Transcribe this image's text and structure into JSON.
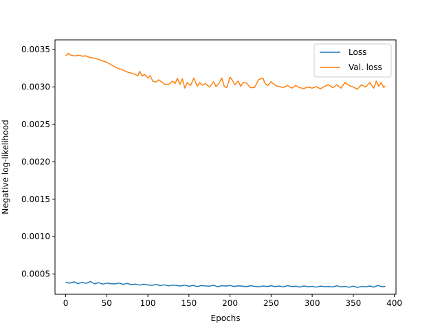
{
  "chart_data": {
    "type": "line",
    "title": "",
    "xlabel": "Epochs",
    "ylabel": "Negative log-likelihood",
    "xlim": [
      -13,
      402
    ],
    "ylim": [
      0.00023,
      0.00363
    ],
    "xticks": [
      0,
      50,
      100,
      150,
      200,
      250,
      300,
      350,
      400
    ],
    "xtick_labels": [
      "0",
      "50",
      "100",
      "150",
      "200",
      "250",
      "300",
      "350",
      "400"
    ],
    "yticks": [
      0.0005,
      0.001,
      0.0015,
      0.002,
      0.0025,
      0.003,
      0.0035
    ],
    "ytick_labels": [
      "0.0005",
      "0.0010",
      "0.0015",
      "0.0020",
      "0.0025",
      "0.0030",
      "0.0035"
    ],
    "grid": false,
    "legend_position": "top-right",
    "series": [
      {
        "name": "Loss",
        "color": "#1f77b4",
        "x": [
          0,
          5,
          10,
          15,
          20,
          25,
          30,
          35,
          40,
          45,
          50,
          55,
          60,
          65,
          70,
          75,
          80,
          85,
          90,
          95,
          100,
          105,
          110,
          115,
          120,
          125,
          130,
          135,
          140,
          145,
          150,
          155,
          160,
          165,
          170,
          175,
          180,
          185,
          190,
          195,
          200,
          205,
          210,
          215,
          220,
          225,
          230,
          235,
          240,
          245,
          250,
          255,
          260,
          265,
          270,
          275,
          280,
          285,
          290,
          295,
          300,
          305,
          310,
          315,
          320,
          325,
          330,
          335,
          340,
          345,
          350,
          355,
          360,
          365,
          370,
          375,
          380,
          385,
          389
        ],
        "values": [
          0.000392,
          0.000378,
          0.000395,
          0.000372,
          0.000388,
          0.000376,
          0.000401,
          0.000369,
          0.000385,
          0.000365,
          0.000379,
          0.000371,
          0.000368,
          0.00038,
          0.000362,
          0.000375,
          0.000358,
          0.000366,
          0.000352,
          0.000364,
          0.000355,
          0.000349,
          0.000361,
          0.000345,
          0.000356,
          0.000342,
          0.000353,
          0.000348,
          0.00034,
          0.000352,
          0.000337,
          0.000349,
          0.000333,
          0.000346,
          0.000341,
          0.000338,
          0.00035,
          0.00033,
          0.000345,
          0.000339,
          0.000347,
          0.000335,
          0.000342,
          0.000338,
          0.000331,
          0.000344,
          0.000336,
          0.000329,
          0.00034,
          0.000334,
          0.000343,
          0.000332,
          0.000339,
          0.000328,
          0.000345,
          0.000333,
          0.000337,
          0.000326,
          0.000341,
          0.00033,
          0.000336,
          0.000325,
          0.000339,
          0.000331,
          0.000334,
          0.000327,
          0.000343,
          0.000329,
          0.000335,
          0.000324,
          0.000338,
          0.000322,
          0.000333,
          0.000328,
          0.00034,
          0.000326,
          0.000347,
          0.00033,
          0.000336
        ]
      },
      {
        "name": "Val. loss",
        "color": "#ff7f0e",
        "x": [
          0,
          3,
          6,
          9,
          12,
          15,
          18,
          21,
          24,
          27,
          30,
          35,
          40,
          45,
          50,
          55,
          60,
          65,
          70,
          75,
          80,
          85,
          88,
          90,
          93,
          96,
          100,
          103,
          106,
          110,
          113,
          116,
          120,
          125,
          130,
          133,
          136,
          139,
          142,
          145,
          148,
          152,
          156,
          160,
          163,
          166,
          170,
          175,
          180,
          183,
          186,
          190,
          193,
          196,
          200,
          203,
          206,
          210,
          213,
          216,
          220,
          225,
          230,
          235,
          240,
          243,
          246,
          250,
          253,
          256,
          260,
          265,
          270,
          275,
          280,
          285,
          290,
          295,
          300,
          305,
          310,
          315,
          320,
          325,
          330,
          335,
          340,
          345,
          350,
          355,
          360,
          365,
          370,
          375,
          378,
          381,
          384,
          387,
          389
        ],
        "values": [
          0.003415,
          0.00345,
          0.003428,
          0.00342,
          0.003415,
          0.003425,
          0.00342,
          0.00341,
          0.003418,
          0.003405,
          0.003395,
          0.003385,
          0.00337,
          0.00335,
          0.00333,
          0.0033,
          0.00327,
          0.003245,
          0.003225,
          0.0032,
          0.003185,
          0.003165,
          0.00315,
          0.00321,
          0.003145,
          0.00317,
          0.00312,
          0.00315,
          0.00308,
          0.003065,
          0.003095,
          0.003075,
          0.00304,
          0.00303,
          0.00308,
          0.003045,
          0.003115,
          0.003035,
          0.00311,
          0.002985,
          0.00306,
          0.00302,
          0.00312,
          0.00301,
          0.00306,
          0.003025,
          0.003045,
          0.003,
          0.00307,
          0.003005,
          0.00304,
          0.00312,
          0.00301,
          0.00299,
          0.00313,
          0.00309,
          0.00303,
          0.00308,
          0.00301,
          0.00306,
          0.003055,
          0.00299,
          0.002995,
          0.0031,
          0.00312,
          0.00304,
          0.00302,
          0.00307,
          0.00304,
          0.003015,
          0.003005,
          0.002995,
          0.00302,
          0.002985,
          0.00302,
          0.00299,
          0.00298,
          0.003,
          0.002985,
          0.003005,
          0.002975,
          0.00301,
          0.00303,
          0.00299,
          0.00303,
          0.002985,
          0.00306,
          0.00302,
          0.003,
          0.00297,
          0.00303,
          0.003,
          0.00306,
          0.002985,
          0.00308,
          0.00301,
          0.00306,
          0.002995,
          0.00301
        ]
      }
    ]
  }
}
